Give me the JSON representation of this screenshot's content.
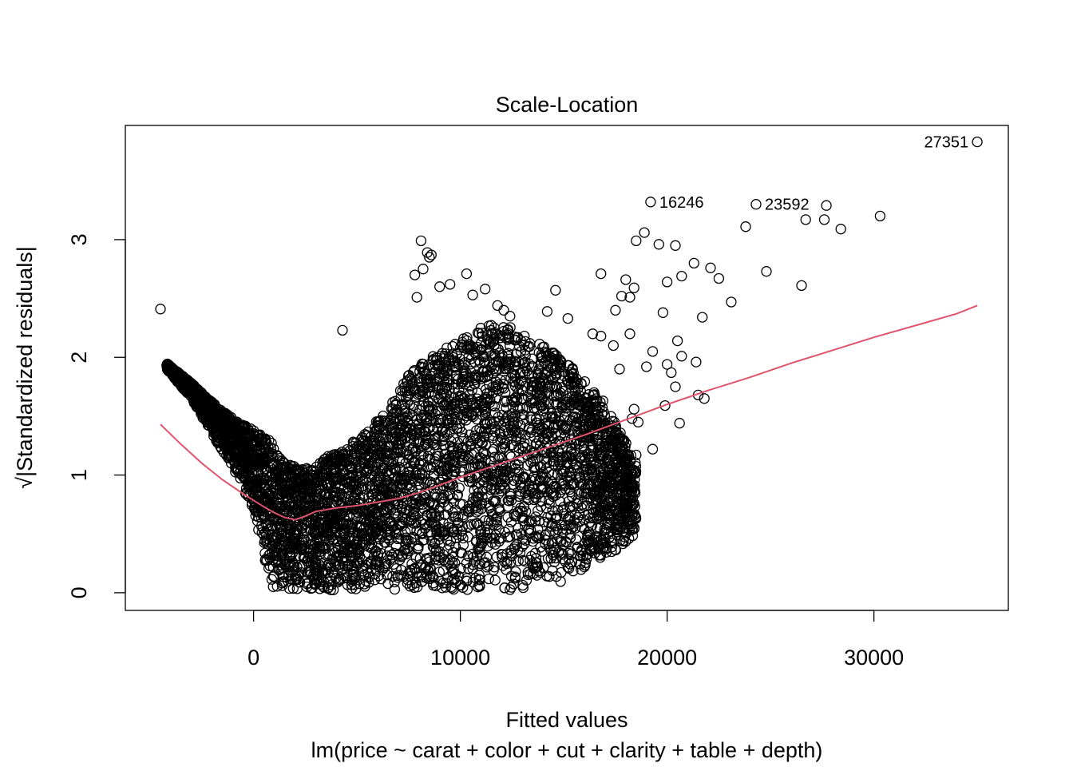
{
  "chart_data": {
    "type": "scatter",
    "title": "Scale-Location",
    "xlabel": "Fitted values",
    "ylabel": "√|Standardized residuals|",
    "subtitle": "lm(price ~ carat + color + cut + clarity + table + depth)",
    "xlim": [
      -6200,
      36500
    ],
    "ylim": [
      -0.15,
      3.97
    ],
    "x_ticks": [
      0,
      10000,
      20000,
      30000
    ],
    "x_tick_labels": [
      "0",
      "10000",
      "20000",
      "30000"
    ],
    "y_ticks": [
      0,
      1,
      2,
      3
    ],
    "y_tick_labels": [
      "0",
      "1",
      "2",
      "3"
    ],
    "grid": false,
    "point_color": "#000000",
    "smoother_color": "#DF536B",
    "smoother": {
      "x": [
        -4500,
        -3500,
        -2500,
        -1500,
        -500,
        500,
        1000,
        1500,
        2000,
        2500,
        3000,
        4000,
        5000,
        6000,
        7000,
        8000,
        10000,
        12000,
        14000,
        16000,
        18000,
        20000,
        22000,
        24000,
        26000,
        28000,
        30000,
        32000,
        34000,
        35000
      ],
      "y": [
        1.43,
        1.26,
        1.1,
        0.96,
        0.84,
        0.73,
        0.68,
        0.64,
        0.62,
        0.65,
        0.69,
        0.72,
        0.74,
        0.77,
        0.8,
        0.85,
        0.98,
        1.1,
        1.22,
        1.34,
        1.47,
        1.6,
        1.72,
        1.83,
        1.95,
        2.06,
        2.17,
        2.27,
        2.37,
        2.44
      ]
    },
    "outliers": [
      {
        "label": "27351",
        "x": 35000,
        "y": 3.83
      },
      {
        "label": "16246",
        "x": 19200,
        "y": 3.32
      },
      {
        "label": "23592",
        "x": 24300,
        "y": 3.3
      }
    ],
    "scattered_points": {
      "x": [
        -4500,
        4300,
        27700,
        26700,
        30300,
        23800,
        28400,
        27600,
        19600,
        20400,
        18500,
        18900,
        21300,
        24800,
        26500,
        22500,
        20700,
        23100,
        20000,
        21700,
        16800,
        18000,
        18400,
        22100,
        21400,
        19800,
        19300,
        18200,
        20500,
        17500,
        19000,
        20000,
        20200,
        20700,
        21800,
        21500,
        20400,
        20600,
        19900,
        18400,
        14600,
        14200,
        15200,
        16400,
        16800,
        17800,
        18200,
        17400,
        8100,
        8400,
        8600,
        8500,
        7800,
        8200,
        10300,
        11200,
        10600,
        9500,
        9000,
        11800,
        12400,
        7900,
        12100,
        15600,
        16900,
        17700,
        18300,
        18600,
        19300,
        18500
      ],
      "y": [
        2.41,
        2.23,
        3.29,
        3.17,
        3.2,
        3.11,
        3.09,
        3.17,
        2.96,
        2.95,
        2.99,
        3.06,
        2.8,
        2.73,
        2.61,
        2.67,
        2.69,
        2.47,
        2.64,
        2.34,
        2.71,
        2.66,
        2.59,
        2.76,
        1.96,
        2.38,
        2.05,
        2.2,
        2.14,
        2.4,
        1.92,
        1.94,
        1.87,
        2.01,
        1.65,
        1.68,
        1.75,
        1.44,
        1.59,
        1.56,
        2.57,
        2.39,
        2.33,
        2.2,
        2.18,
        2.52,
        2.51,
        2.1,
        2.99,
        2.89,
        2.87,
        2.85,
        2.7,
        2.75,
        2.71,
        2.58,
        2.53,
        2.62,
        2.6,
        2.44,
        2.35,
        2.51,
        2.4,
        1.82,
        1.63,
        1.9,
        1.48,
        1.45,
        1.22,
        1.17
      ]
    },
    "dense_cloud": {
      "description_levels": "lower envelope near 0; upper envelope by fitted value",
      "x": [
        -4200,
        -3000,
        -2000,
        -1000,
        0,
        800,
        1500,
        2500,
        3500,
        5000,
        6500,
        7500,
        8500,
        9500,
        10500,
        11500,
        12500,
        13500,
        14500,
        15500,
        16500,
        17500,
        18500
      ],
      "upper": [
        1.95,
        1.78,
        1.62,
        1.48,
        1.38,
        1.3,
        1.1,
        1.05,
        1.15,
        1.3,
        1.55,
        1.85,
        2.0,
        2.1,
        2.2,
        2.3,
        2.25,
        2.15,
        2.05,
        1.9,
        1.7,
        1.45,
        1.1
      ],
      "lower": [
        1.9,
        1.65,
        1.35,
        1.05,
        0.7,
        0.05,
        0.02,
        0.02,
        0.02,
        0.02,
        0.02,
        0.02,
        0.02,
        0.02,
        0.02,
        0.02,
        0.02,
        0.05,
        0.08,
        0.12,
        0.25,
        0.35,
        0.5
      ]
    }
  }
}
